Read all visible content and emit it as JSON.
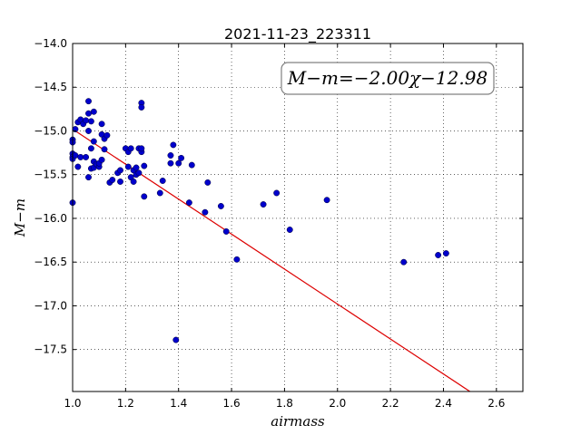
{
  "chart_data": {
    "type": "scatter",
    "title": "2021-11-23_223311",
    "xlabel": "airmass",
    "ylabel": "M−m",
    "xlim": [
      1.0,
      2.7
    ],
    "ylim": [
      -17.98,
      -14.0
    ],
    "y_inverted": true,
    "grid": true,
    "xticks": [
      1.0,
      1.2,
      1.4,
      1.6,
      1.8,
      2.0,
      2.2,
      2.4,
      2.6
    ],
    "xtick_labels": [
      "1.0",
      "1.2",
      "1.4",
      "1.6",
      "1.8",
      "2.0",
      "2.2",
      "2.4",
      "2.6"
    ],
    "yticks": [
      -14.0,
      -14.5,
      -15.0,
      -15.5,
      -16.0,
      -16.5,
      -17.0,
      -17.5
    ],
    "ytick_labels": [
      "−14.0",
      "−14.5",
      "−15.0",
      "−15.5",
      "−16.0",
      "−16.5",
      "−17.0",
      "−17.5"
    ],
    "annotation": "M−m=−2.00χ−12.98",
    "point_color": "#0000cc",
    "fit_color": "#dd0000",
    "fit": {
      "slope": -2.0,
      "intercept": -12.98,
      "x_range": [
        1.0,
        2.5
      ]
    },
    "points": [
      [
        1.0,
        -15.1
      ],
      [
        1.0,
        -15.13
      ],
      [
        1.0,
        -15.26
      ],
      [
        1.0,
        -15.3
      ],
      [
        1.0,
        -15.32
      ],
      [
        1.0,
        -15.82
      ],
      [
        1.01,
        -14.98
      ],
      [
        1.01,
        -15.28
      ],
      [
        1.02,
        -14.9
      ],
      [
        1.02,
        -15.41
      ],
      [
        1.03,
        -14.87
      ],
      [
        1.03,
        -15.3
      ],
      [
        1.04,
        -14.92
      ],
      [
        1.05,
        -15.3
      ],
      [
        1.05,
        -14.88
      ],
      [
        1.06,
        -14.66
      ],
      [
        1.06,
        -14.8
      ],
      [
        1.06,
        -15.0
      ],
      [
        1.06,
        -15.53
      ],
      [
        1.07,
        -14.89
      ],
      [
        1.07,
        -15.2
      ],
      [
        1.07,
        -15.43
      ],
      [
        1.08,
        -14.78
      ],
      [
        1.08,
        -15.12
      ],
      [
        1.08,
        -15.35
      ],
      [
        1.08,
        -15.42
      ],
      [
        1.09,
        -15.38
      ],
      [
        1.1,
        -15.41
      ],
      [
        1.1,
        -15.37
      ],
      [
        1.11,
        -14.92
      ],
      [
        1.11,
        -15.04
      ],
      [
        1.11,
        -15.33
      ],
      [
        1.12,
        -15.09
      ],
      [
        1.12,
        -15.21
      ],
      [
        1.13,
        -15.05
      ],
      [
        1.14,
        -15.59
      ],
      [
        1.15,
        -15.56
      ],
      [
        1.17,
        -15.48
      ],
      [
        1.18,
        -15.45
      ],
      [
        1.18,
        -15.58
      ],
      [
        1.2,
        -15.2
      ],
      [
        1.21,
        -15.24
      ],
      [
        1.21,
        -15.41
      ],
      [
        1.22,
        -15.2
      ],
      [
        1.22,
        -15.53
      ],
      [
        1.23,
        -15.58
      ],
      [
        1.23,
        -15.45
      ],
      [
        1.24,
        -15.42
      ],
      [
        1.24,
        -15.5
      ],
      [
        1.25,
        -15.48
      ],
      [
        1.25,
        -15.2
      ],
      [
        1.26,
        -15.24
      ],
      [
        1.26,
        -15.2
      ],
      [
        1.26,
        -14.68
      ],
      [
        1.26,
        -14.73
      ],
      [
        1.27,
        -15.4
      ],
      [
        1.27,
        -15.75
      ],
      [
        1.33,
        -15.71
      ],
      [
        1.34,
        -15.57
      ],
      [
        1.37,
        -15.28
      ],
      [
        1.37,
        -15.37
      ],
      [
        1.38,
        -15.16
      ],
      [
        1.39,
        -17.39
      ],
      [
        1.4,
        -15.37
      ],
      [
        1.41,
        -15.31
      ],
      [
        1.44,
        -15.82
      ],
      [
        1.45,
        -15.39
      ],
      [
        1.5,
        -15.93
      ],
      [
        1.51,
        -15.59
      ],
      [
        1.56,
        -15.86
      ],
      [
        1.58,
        -16.15
      ],
      [
        1.62,
        -16.47
      ],
      [
        1.72,
        -15.84
      ],
      [
        1.77,
        -15.71
      ],
      [
        1.82,
        -16.13
      ],
      [
        1.96,
        -15.79
      ],
      [
        2.25,
        -16.5
      ],
      [
        2.38,
        -16.42
      ],
      [
        2.41,
        -16.4
      ]
    ]
  }
}
